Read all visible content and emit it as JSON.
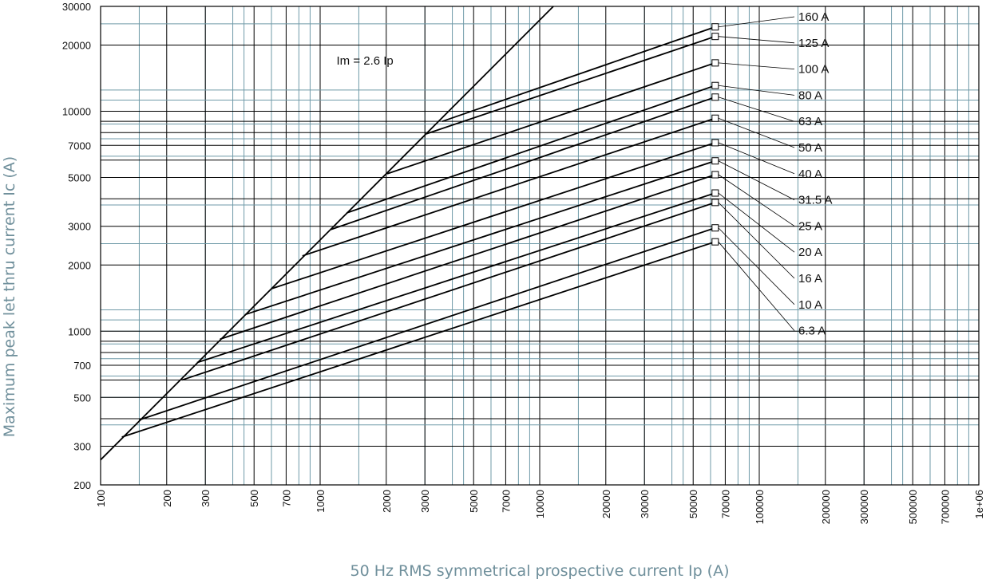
{
  "chart_data": {
    "type": "line",
    "xlabel": "50 Hz RMS symmetrical prospective current Ip (A)",
    "ylabel": "Maximum peak let thru current Ic (A)",
    "xscale": "log",
    "yscale": "log",
    "xlim": [
      100,
      1000000
    ],
    "ylim": [
      200,
      30000
    ],
    "x_ticks": [
      100,
      200,
      300,
      500,
      700,
      1000,
      2000,
      3000,
      5000,
      7000,
      10000,
      20000,
      30000,
      50000,
      70000,
      100000,
      200000,
      300000,
      500000,
      700000,
      1000000
    ],
    "x_tick_labels": [
      "100",
      "200",
      "300",
      "500",
      "700",
      "1000",
      "2000",
      "3000",
      "5000",
      "7000",
      "10000",
      "20000",
      "30000",
      "50000",
      "70000",
      "100000",
      "200000",
      "300000",
      "500000",
      "700000",
      "1e+06"
    ],
    "y_ticks": [
      200,
      300,
      500,
      700,
      1000,
      2000,
      3000,
      5000,
      7000,
      10000,
      20000,
      30000
    ],
    "y_tick_labels": [
      "200",
      "300",
      "500",
      "700",
      "1000",
      "2000",
      "3000",
      "5000",
      "7000",
      "10000",
      "20000",
      "30000"
    ],
    "grid": true,
    "limit_line": {
      "label": "Im = 2.6 Ip",
      "points": [
        [
          100,
          260
        ],
        [
          11538,
          30000
        ]
      ]
    },
    "series": [
      {
        "name": "160 A",
        "values": [
          [
            3600,
            9000
          ],
          [
            63000,
            24200
          ]
        ]
      },
      {
        "name": "125 A",
        "values": [
          [
            3050,
            7900
          ],
          [
            63000,
            21900
          ]
        ]
      },
      {
        "name": "100 A",
        "values": [
          [
            2020,
            5200
          ],
          [
            63000,
            16600
          ]
        ]
      },
      {
        "name": "80 A",
        "values": [
          [
            1320,
            3450
          ],
          [
            63000,
            13100
          ]
        ]
      },
      {
        "name": "63 A",
        "values": [
          [
            1120,
            2900
          ],
          [
            63000,
            11600
          ]
        ]
      },
      {
        "name": "50 A",
        "values": [
          [
            830,
            2200
          ],
          [
            63000,
            9300
          ]
        ]
      },
      {
        "name": "40 A",
        "values": [
          [
            600,
            1560
          ],
          [
            63000,
            7200
          ]
        ]
      },
      {
        "name": "31.5 A",
        "values": [
          [
            455,
            1190
          ],
          [
            63000,
            5950
          ]
        ]
      },
      {
        "name": "25 A",
        "values": [
          [
            350,
            920
          ],
          [
            63000,
            5150
          ]
        ]
      },
      {
        "name": "20 A",
        "values": [
          [
            275,
            720
          ],
          [
            63000,
            4250
          ]
        ]
      },
      {
        "name": "16 A",
        "values": [
          [
            235,
            600
          ],
          [
            63000,
            3850
          ]
        ]
      },
      {
        "name": "10 A",
        "values": [
          [
            150,
            395
          ],
          [
            63000,
            2950
          ]
        ]
      },
      {
        "name": "6.3 A",
        "values": [
          [
            125,
            330
          ],
          [
            63000,
            2550
          ]
        ]
      }
    ],
    "label_rows": [
      "160 A",
      "125 A",
      "100 A",
      "80 A",
      "63 A",
      "50 A",
      "40 A",
      "31.5 A",
      "25 A",
      "20 A",
      "16 A",
      "10 A",
      "6.3 A"
    ],
    "colors": {
      "grid_major": "#000000",
      "grid_minor": "#6f9aa8",
      "curve": "#000000",
      "axis_title": "#6f8f9b"
    }
  }
}
